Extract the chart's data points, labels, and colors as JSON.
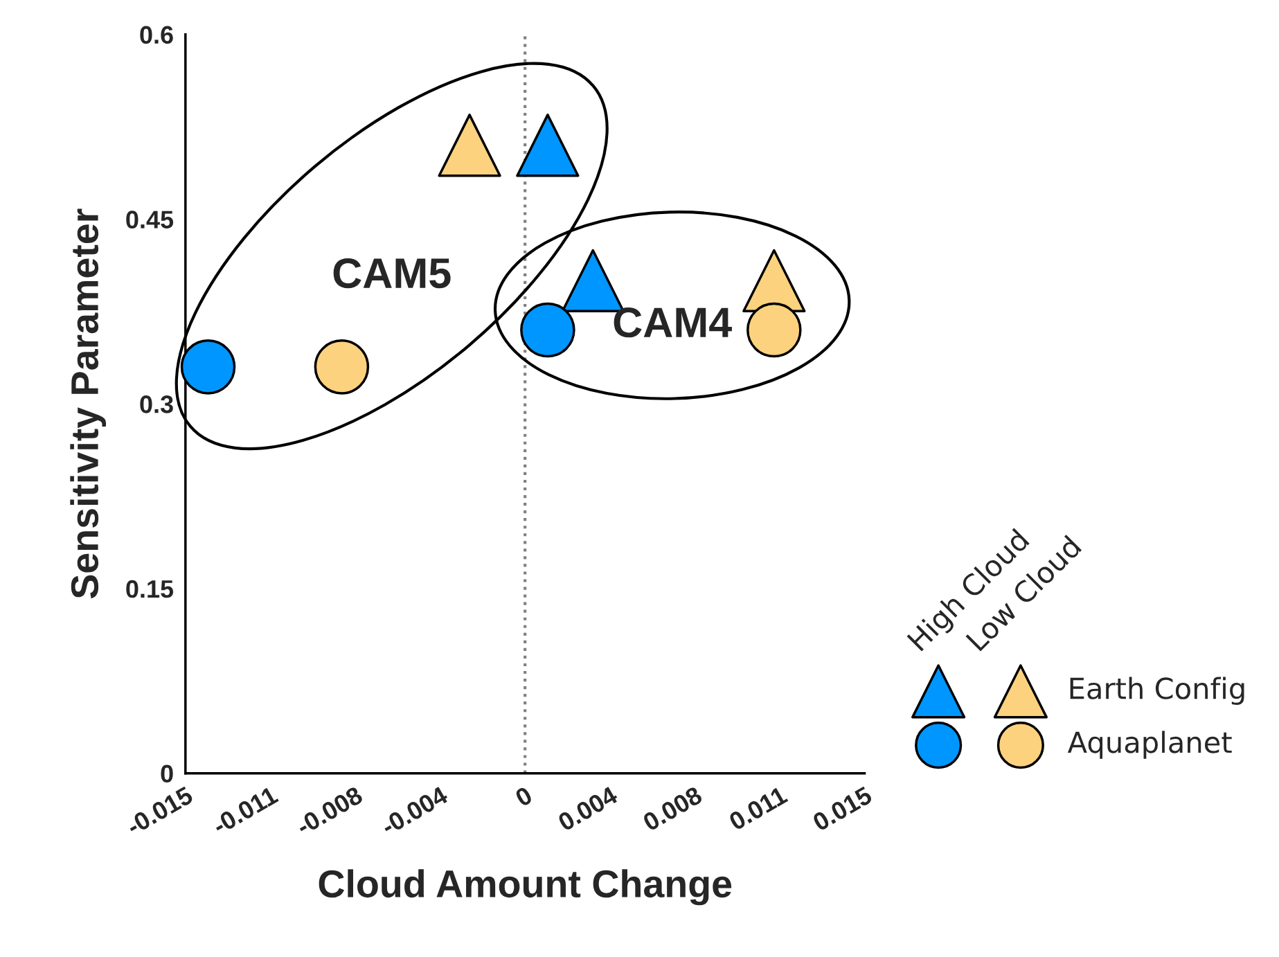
{
  "chart_data": {
    "type": "scatter",
    "xlabel": "Cloud Amount Change",
    "ylabel": "Sensitivity Parameter",
    "xlim": [
      -0.015,
      0.015
    ],
    "ylim": [
      0,
      0.6
    ],
    "xticks": [
      {
        "value": -0.015,
        "label": "-0.015"
      },
      {
        "value": -0.01125,
        "label": "-0.011"
      },
      {
        "value": -0.0075,
        "label": "-0.008"
      },
      {
        "value": -0.00375,
        "label": "-0.004"
      },
      0,
      {
        "value": 0.00375,
        "label": "0.004"
      },
      {
        "value": 0.0075,
        "label": "0.008"
      },
      {
        "value": 0.01125,
        "label": "0.011"
      },
      {
        "value": 0.015,
        "label": "0.015"
      }
    ],
    "yticks": [
      0,
      0.15,
      0.3,
      0.45,
      0.6
    ],
    "ref_lines": [
      {
        "axis": "x",
        "value": 0,
        "color": "#808080",
        "line_style": "dotted"
      }
    ],
    "series": [
      {
        "name": "Earth Config",
        "color": "#0096ff",
        "marker": "triangle",
        "x": [
          0.001,
          0.003
        ],
        "values": [
          0.51,
          0.4
        ]
      },
      {
        "color": "#fdd27e",
        "marker": "triangle",
        "x": [
          -0.00245,
          0.011
        ],
        "values": [
          0.51,
          0.4
        ]
      },
      {
        "name": "Aquaplanet",
        "color": "#0096ff",
        "marker": "circle",
        "x": [
          -0.014,
          0.001
        ],
        "values": [
          0.33,
          0.36
        ]
      },
      {
        "color": "#fdd27e",
        "marker": "circle",
        "x": [
          -0.0081,
          0.011
        ],
        "values": [
          0.33,
          0.36
        ]
      }
    ],
    "annotations": [
      "CAM5",
      "CAM4",
      "High Cloud",
      "Low Cloud"
    ],
    "grid": false,
    "legend": "bottom right"
  }
}
